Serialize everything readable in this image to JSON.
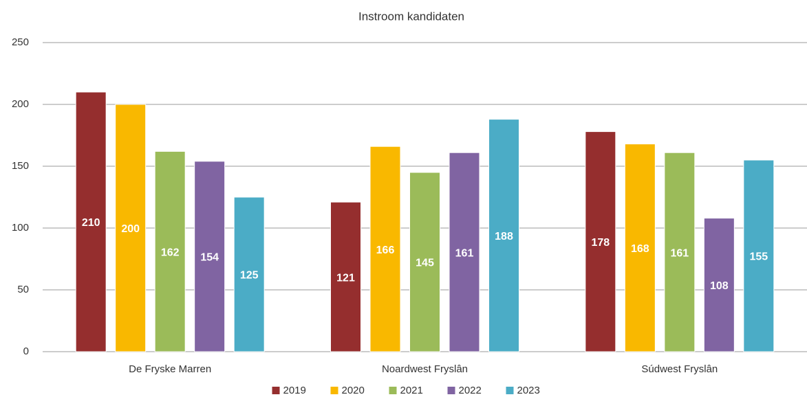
{
  "chart_data": {
    "type": "bar",
    "title": "Instroom kandidaten",
    "categories": [
      "De Fryske Marren",
      "Noardwest Fryslân",
      "Súdwest Fryslân"
    ],
    "series": [
      {
        "name": "2019",
        "color": "#952e2e",
        "values": [
          210,
          121,
          178
        ]
      },
      {
        "name": "2020",
        "color": "#f9b800",
        "values": [
          200,
          166,
          168
        ]
      },
      {
        "name": "2021",
        "color": "#9bbb59",
        "values": [
          162,
          145,
          161
        ]
      },
      {
        "name": "2022",
        "color": "#8064a2",
        "values": [
          154,
          161,
          108
        ]
      },
      {
        "name": "2023",
        "color": "#4bacc6",
        "values": [
          125,
          188,
          155
        ]
      }
    ],
    "ylim": [
      0,
      250
    ],
    "yticks": [
      0,
      50,
      100,
      150,
      200,
      250
    ],
    "grid": true,
    "legend": "bottom"
  }
}
